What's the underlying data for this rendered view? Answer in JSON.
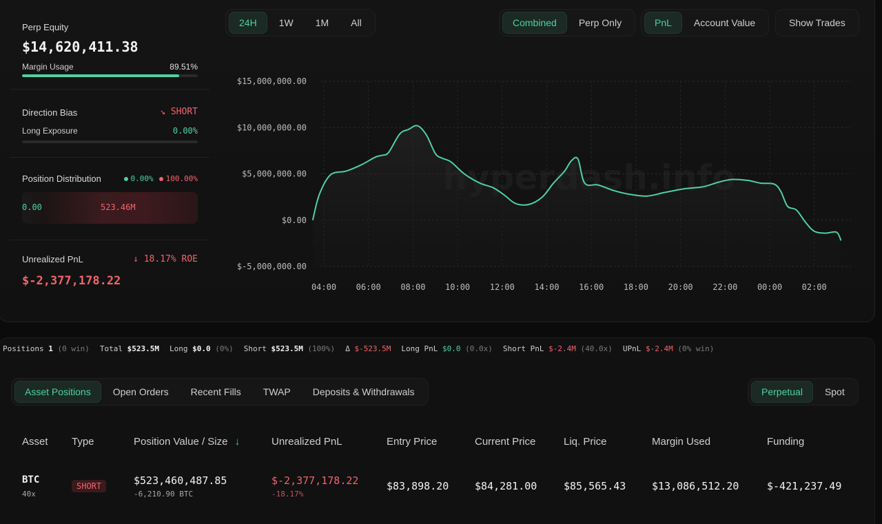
{
  "summary": {
    "perp_equity_label": "Perp Equity",
    "perp_equity_value": "$14,620,411.38",
    "margin_usage_label": "Margin Usage",
    "margin_usage_value": "89.51%",
    "margin_usage_fraction": 0.8951,
    "direction_bias_label": "Direction Bias",
    "direction_bias_value": "↘ SHORT",
    "long_exposure_label": "Long Exposure",
    "long_exposure_value": "0.00%",
    "long_exposure_fraction": 0.0,
    "position_distribution_label": "Position Distribution",
    "dist_long_pct": "0.00%",
    "dist_short_pct": "100.00%",
    "dist_long_value": "0.00",
    "dist_short_value": "523.46M",
    "unrealized_pnl_label": "Unrealized PnL",
    "unrealized_roe": "↓ 18.17% ROE",
    "unrealized_pnl_value": "$-2,377,178.22"
  },
  "toolbar": {
    "ranges": [
      "24H",
      "1W",
      "1M",
      "All"
    ],
    "active_range": "24H",
    "modes": [
      "Combined",
      "Perp Only"
    ],
    "active_mode": "Combined",
    "metrics": [
      "PnL",
      "Account Value"
    ],
    "active_metric": "PnL",
    "show_trades": "Show Trades"
  },
  "chart_data": {
    "type": "area",
    "watermark": "hyperdash.info",
    "xlabels": [
      "04:00",
      "06:00",
      "08:00",
      "10:00",
      "12:00",
      "14:00",
      "16:00",
      "18:00",
      "20:00",
      "22:00",
      "00:00",
      "02:00"
    ],
    "ytick_labels": [
      "$15,000,000.00",
      "$10,000,000.00",
      "$5,000,000.00",
      "$0.00",
      "$-5,000,000.00"
    ],
    "ylim": [
      -5000000,
      15000000
    ],
    "grid": true,
    "series": [
      {
        "x": [
          3.5,
          3.8,
          4.3,
          5.0,
          5.7,
          6.3,
          6.6,
          6.9,
          7.4,
          7.8,
          8.2,
          8.6,
          9.0,
          9.3,
          9.7,
          10.3,
          11.0,
          11.6,
          12.1,
          12.6,
          13.2,
          13.8,
          14.3,
          14.8,
          15.1,
          15.4,
          15.7,
          16.3,
          17.0,
          17.7,
          18.5,
          19.3,
          20.2,
          21.0,
          21.7,
          22.3,
          23.0,
          23.6,
          24.2,
          24.5,
          24.8,
          25.2,
          25.6,
          26.0,
          26.5,
          27.0,
          27.2
        ],
        "y": [
          0.0,
          2800000,
          4900000,
          5300000,
          6000000,
          6800000,
          7000000,
          7300000,
          9300000,
          9800000,
          10200000,
          9200000,
          7200000,
          6700000,
          6300000,
          5000000,
          4000000,
          3500000,
          2700000,
          1800000,
          1700000,
          2500000,
          4000000,
          5300000,
          6400000,
          6600000,
          4000000,
          3800000,
          3200000,
          2800000,
          2600000,
          3000000,
          3400000,
          3600000,
          4100000,
          4400000,
          4300000,
          4000000,
          3900000,
          3100000,
          1500000,
          1100000,
          -200000,
          -1200000,
          -1400000,
          -1300000,
          -2200000
        ],
        "color": "#4fd1a1"
      }
    ]
  },
  "stats": {
    "positions_label": "Positions",
    "positions_value": "1",
    "positions_note": "(0 win)",
    "total_label": "Total",
    "total_value": "$523.5M",
    "long_label": "Long",
    "long_value": "$0.0",
    "long_note": "(0%)",
    "short_label": "Short",
    "short_value": "$523.5M",
    "short_note": "(100%)",
    "delta_label": "Δ",
    "delta_value": "$-523.5M",
    "longpnl_label": "Long PnL",
    "longpnl_value": "$0.0",
    "longpnl_note": "(0.0x)",
    "shortpnl_label": "Short PnL",
    "shortpnl_value": "$-2.4M",
    "shortpnl_note": "(40.0x)",
    "upnl_label": "UPnL",
    "upnl_value": "$-2.4M",
    "upnl_note": "(0% win)"
  },
  "tabs": {
    "left": [
      "Asset Positions",
      "Open Orders",
      "Recent Fills",
      "TWAP",
      "Deposits & Withdrawals"
    ],
    "active_left": "Asset Positions",
    "right": [
      "Perpetual",
      "Spot"
    ],
    "active_right": "Perpetual"
  },
  "table": {
    "headers": {
      "asset": "Asset",
      "type": "Type",
      "position": "Position Value / Size",
      "sort_icon": "↓",
      "upnl": "Unrealized PnL",
      "entry": "Entry Price",
      "current": "Current Price",
      "liq": "Liq. Price",
      "margin": "Margin Used",
      "funding": "Funding"
    },
    "rows": [
      {
        "asset": "BTC",
        "leverage": "40x",
        "type": "SHORT",
        "position_value": "$523,460,487.85",
        "position_size": "-6,210.90 BTC",
        "upnl": "$-2,377,178.22",
        "upnl_pct": "-18.17%",
        "entry": "$83,898.20",
        "current": "$84,281.00",
        "liq": "$85,565.43",
        "margin": "$13,086,512.20",
        "funding": "$-421,237.49"
      }
    ]
  }
}
